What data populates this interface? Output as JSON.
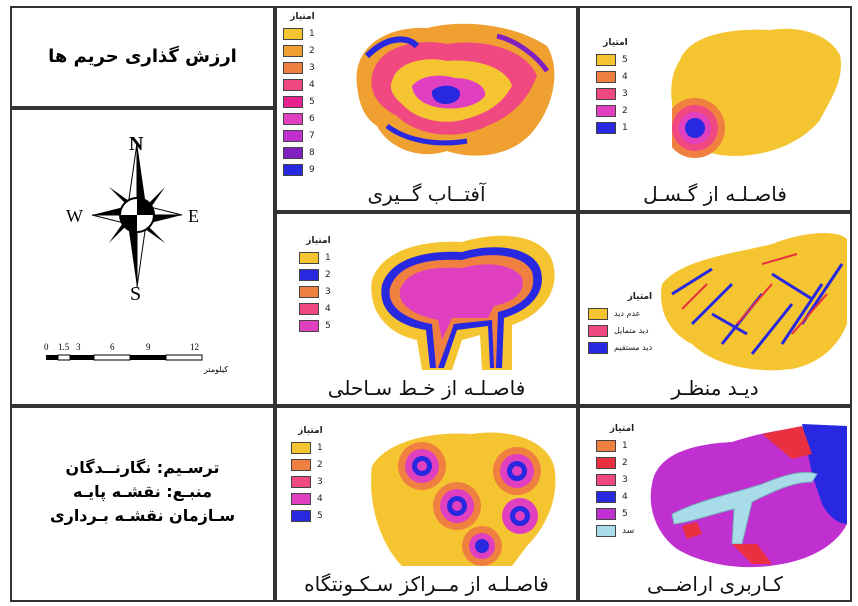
{
  "title_panel": {
    "title": "ارزش گذاری حریم ها"
  },
  "compass": {
    "n": "N",
    "s": "S",
    "e": "E",
    "w": "W"
  },
  "scale_bar": {
    "ticks": [
      "0",
      "1.5",
      "3",
      "6",
      "9",
      "12"
    ],
    "unit": "کیلومتر"
  },
  "credits": {
    "line1": "ترسـیم: نگارنــدگان",
    "line2": "منبـع: نقشـه پایـه",
    "line3": "سـازمان نقشـه بـرداری"
  },
  "maps": {
    "sun": {
      "title": "آفتــاب گــیری",
      "legend_title": "امتیاز",
      "legend": [
        "1",
        "2",
        "3",
        "4",
        "5",
        "6",
        "7",
        "8",
        "9"
      ]
    },
    "fault": {
      "title": "فاصـلـه از گـسـل",
      "legend_title": "امتیاز",
      "legend": [
        "5",
        "4",
        "3",
        "2",
        "1"
      ]
    },
    "coast": {
      "title": "فاصـلـه از خـط سـاحلی",
      "legend_title": "امتیاز",
      "legend": [
        "1",
        "2",
        "3",
        "4",
        "5"
      ]
    },
    "view": {
      "title": "دیـد منظـر",
      "legend_title": "امتیاز",
      "legend": [
        "عدم دید",
        "دید متمایل",
        "دید مستقیم"
      ]
    },
    "settle": {
      "title": "فاصـلـه از مــراکز سـکـونتگاه",
      "legend_title": "امتیاز",
      "legend": [
        "1",
        "2",
        "3",
        "4",
        "5"
      ]
    },
    "landuse": {
      "title": "کـاربری اراضــی",
      "legend_title": "امتیاز",
      "legend": [
        "1",
        "2",
        "3",
        "4",
        "5",
        "سد"
      ]
    }
  },
  "colors": {
    "score_1": "#f5c531",
    "score_2": "#f0a030",
    "score_3": "#f08040",
    "score_4": "#f04880",
    "score_5": "#e82090",
    "score_6": "#e040c0",
    "score_7": "#c030d0",
    "score_8": "#8020c0",
    "score_9": "#2828e0",
    "blue": "#2525e0",
    "magenta": "#e030c0",
    "dam": "#a8dce8",
    "red": "#e83040"
  }
}
